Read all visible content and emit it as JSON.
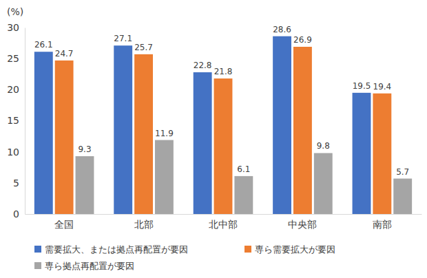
{
  "chart_data": {
    "type": "bar",
    "y_label": "(%)",
    "categories": [
      "全国",
      "北部",
      "北中部",
      "中央部",
      "南部"
    ],
    "series": [
      {
        "name": "需要拡大、または拠点再配置が要因",
        "color": "#4472c4",
        "values": [
          26.1,
          27.1,
          22.8,
          28.6,
          19.5
        ]
      },
      {
        "name": "専ら需要拡大が要因",
        "color": "#ed7d31",
        "values": [
          24.7,
          25.7,
          21.8,
          26.9,
          19.4
        ]
      },
      {
        "name": "専ら拠点再配置が要因",
        "color": "#a5a5a5",
        "values": [
          9.3,
          11.9,
          6.1,
          9.8,
          5.7
        ]
      }
    ],
    "ylim": [
      0,
      30
    ],
    "yticks": [
      0,
      5,
      10,
      15,
      20,
      25,
      30
    ],
    "grid": false,
    "data_labels": true,
    "legend": "bottom"
  }
}
